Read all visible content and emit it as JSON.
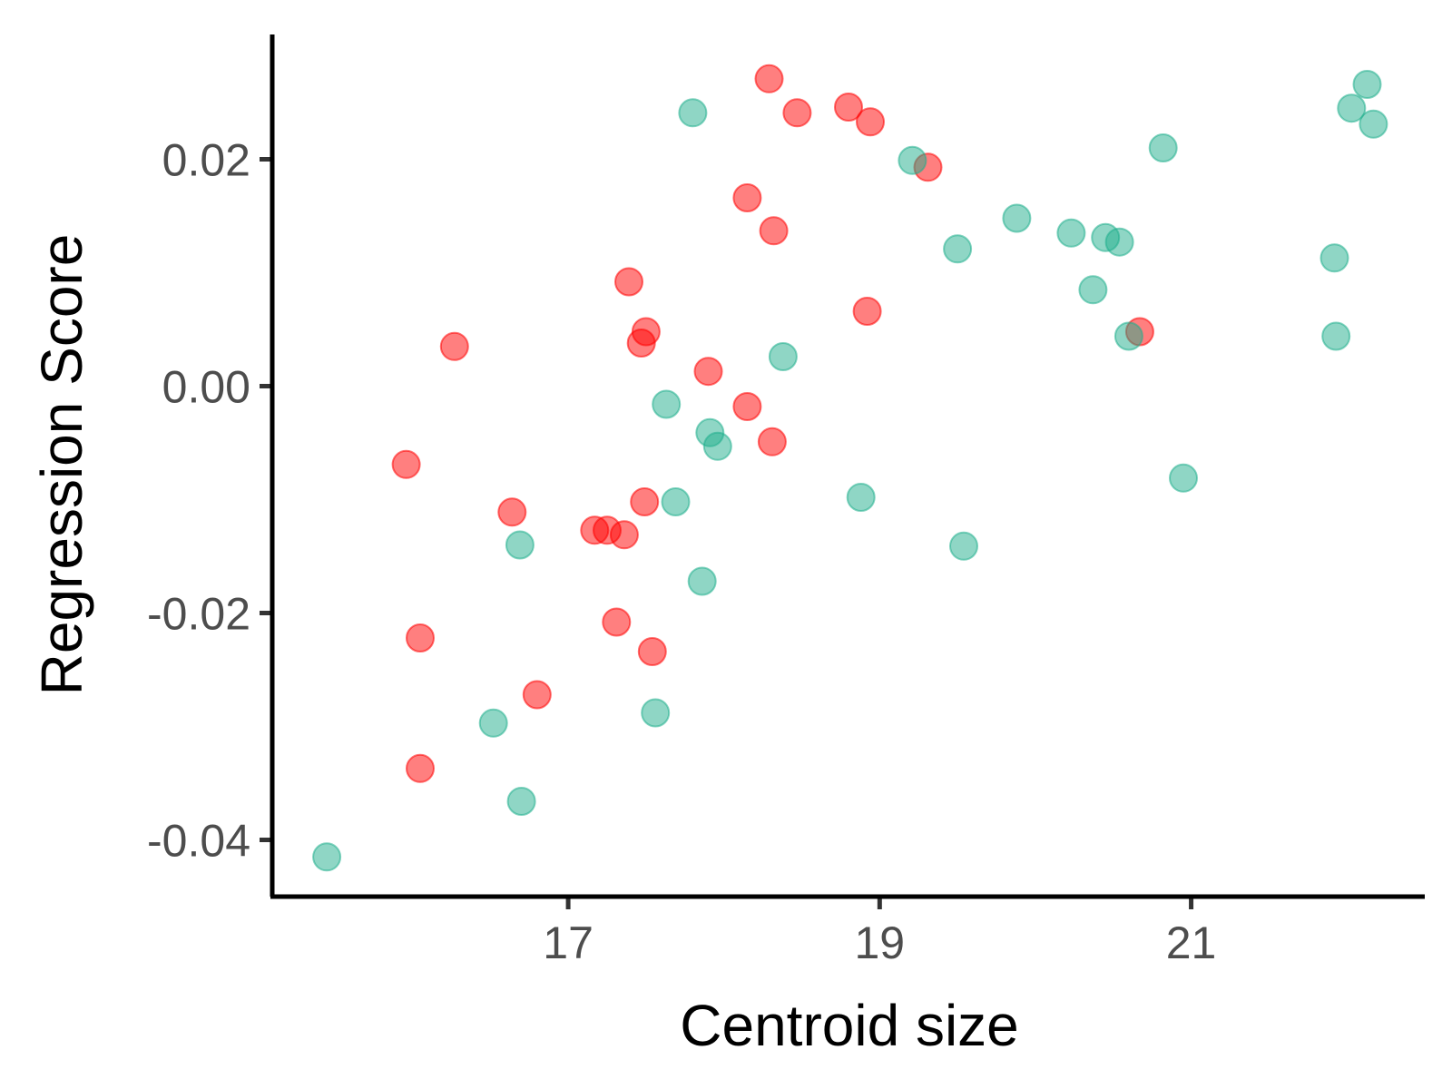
{
  "chart_data": {
    "type": "scatter",
    "title": "",
    "xlabel": "Centroid size",
    "ylabel": "Regression Score",
    "xlim": [
      15.1,
      22.5
    ],
    "ylim": [
      -0.045,
      0.031
    ],
    "x_ticks": [
      {
        "value": 17,
        "label": "17"
      },
      {
        "value": 19,
        "label": "19"
      },
      {
        "value": 21,
        "label": "21"
      }
    ],
    "y_ticks": [
      {
        "value": 0.02,
        "label": "0.02"
      },
      {
        "value": 0.0,
        "label": "0.00"
      },
      {
        "value": -0.02,
        "label": "-0.02"
      },
      {
        "value": -0.04,
        "label": "-0.04"
      }
    ],
    "grid": false,
    "legend": "none",
    "series": [
      {
        "color": "#F8766D",
        "fill": "#FF0000",
        "points": [
          [
            18.29,
            0.0271
          ],
          [
            18.47,
            0.0241
          ],
          [
            18.8,
            0.0246
          ],
          [
            18.94,
            0.0233
          ],
          [
            19.31,
            0.0193
          ],
          [
            18.15,
            0.0166
          ],
          [
            18.32,
            0.0137
          ],
          [
            17.39,
            0.0092
          ],
          [
            18.92,
            0.0066
          ],
          [
            17.5,
            0.0048
          ],
          [
            17.47,
            0.0038
          ],
          [
            16.27,
            0.0035
          ],
          [
            17.9,
            0.0013
          ],
          [
            18.15,
            -0.0018
          ],
          [
            18.31,
            -0.0049
          ],
          [
            15.96,
            -0.0069
          ],
          [
            16.64,
            -0.0111
          ],
          [
            17.49,
            -0.0102
          ],
          [
            17.17,
            -0.0127
          ],
          [
            17.25,
            -0.0127
          ],
          [
            17.36,
            -0.0131
          ],
          [
            17.31,
            -0.0208
          ],
          [
            16.05,
            -0.0222
          ],
          [
            17.54,
            -0.0234
          ],
          [
            16.8,
            -0.0272
          ],
          [
            16.05,
            -0.0337
          ],
          [
            20.67,
            0.0048
          ]
        ]
      },
      {
        "color": "#00BA9A",
        "fill": "#1FAE8C",
        "points": [
          [
            17.8,
            0.0241
          ],
          [
            19.21,
            0.0199
          ],
          [
            20.82,
            0.021
          ],
          [
            22.13,
            0.0266
          ],
          [
            22.03,
            0.0245
          ],
          [
            22.17,
            0.0231
          ],
          [
            19.88,
            0.0148
          ],
          [
            20.23,
            0.0135
          ],
          [
            20.45,
            0.0131
          ],
          [
            20.54,
            0.0127
          ],
          [
            19.5,
            0.0121
          ],
          [
            21.92,
            0.0113
          ],
          [
            20.37,
            0.0085
          ],
          [
            20.6,
            0.0044
          ],
          [
            21.93,
            0.0044
          ],
          [
            18.38,
            0.0026
          ],
          [
            17.63,
            -0.0016
          ],
          [
            17.91,
            -0.0041
          ],
          [
            17.96,
            -0.0053
          ],
          [
            18.88,
            -0.0098
          ],
          [
            17.69,
            -0.0102
          ],
          [
            20.95,
            -0.0081
          ],
          [
            16.69,
            -0.014
          ],
          [
            19.54,
            -0.0141
          ],
          [
            17.86,
            -0.0172
          ],
          [
            17.56,
            -0.0288
          ],
          [
            16.52,
            -0.0297
          ],
          [
            16.7,
            -0.0366
          ],
          [
            15.45,
            -0.0415
          ]
        ]
      }
    ]
  }
}
